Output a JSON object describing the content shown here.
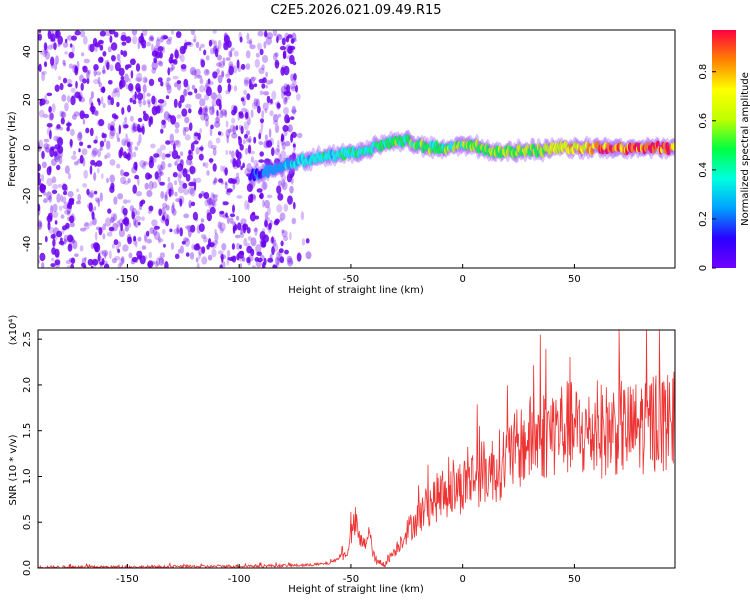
{
  "title": "C2E5.2026.021.09.49.R15",
  "colors": {
    "noise": "#6a00ee",
    "snr_line": "#ee3333",
    "colorbar_stops": [
      "#7000ff",
      "#2a00ff",
      "#00a0ff",
      "#00ffe0",
      "#00ff40",
      "#c0ff00",
      "#ffff00",
      "#ff8000",
      "#ff0040"
    ]
  },
  "chart_data": [
    {
      "type": "heatmap",
      "xlabel": "Height of straight line (km)",
      "ylabel": "Frequency (Hz)",
      "xlim": [
        -190,
        95
      ],
      "ylim": [
        -50,
        49
      ],
      "xticks": [
        -150,
        -100,
        -50,
        0,
        50
      ],
      "yticks": [
        -40,
        -20,
        0,
        20,
        40
      ],
      "colorbar": {
        "label": "Normalized spectral amplitude",
        "range": [
          0,
          0.97
        ],
        "ticks": [
          0.0,
          0.2,
          0.4,
          0.6,
          0.8
        ]
      },
      "noise_region_x": [
        -190,
        -75
      ],
      "signal_ridge": {
        "x": [
          -95,
          -85,
          -75,
          -65,
          -55,
          -45,
          -35,
          -25,
          -15,
          -5,
          5,
          15,
          25,
          35,
          45,
          55,
          65,
          75,
          85,
          95
        ],
        "freq": [
          -12,
          -9,
          -6,
          -4,
          -3,
          -2,
          2,
          3,
          0,
          0,
          1,
          -2,
          -1,
          -1,
          0,
          0,
          0,
          0,
          0,
          0
        ],
        "amplitude": [
          0.15,
          0.25,
          0.3,
          0.35,
          0.4,
          0.4,
          0.45,
          0.5,
          0.5,
          0.5,
          0.55,
          0.55,
          0.6,
          0.6,
          0.7,
          0.8,
          0.85,
          0.9,
          0.9,
          0.9
        ]
      }
    },
    {
      "type": "line",
      "xlabel": "Height of straight line (km)",
      "ylabel": "SNR (10 * v/v)",
      "y_multiplier": "(x10⁴)",
      "xlim": [
        -190,
        95
      ],
      "ylim": [
        0,
        2.6
      ],
      "xticks": [
        -150,
        -100,
        -50,
        0,
        50
      ],
      "yticks": [
        0.0,
        0.5,
        1.0,
        1.5,
        2.0,
        2.5
      ],
      "series": [
        {
          "x": [
            -190,
            -150,
            -100,
            -70,
            -60,
            -52,
            -50,
            -48,
            -46,
            -44,
            -42,
            -40,
            -38,
            -35,
            -30,
            -25,
            -20,
            -15,
            -10,
            -5,
            0,
            5,
            10,
            15,
            20,
            25,
            30,
            35,
            40,
            45,
            50,
            55,
            60,
            65,
            70,
            75,
            80,
            85,
            90,
            95
          ],
          "y": [
            0.01,
            0.01,
            0.02,
            0.03,
            0.05,
            0.15,
            0.35,
            0.5,
            0.3,
            0.25,
            0.4,
            0.15,
            0.05,
            0.05,
            0.2,
            0.4,
            0.55,
            0.7,
            0.8,
            0.85,
            0.9,
            1.0,
            1.05,
            1.1,
            1.2,
            1.3,
            1.4,
            1.45,
            1.5,
            1.55,
            1.5,
            1.45,
            1.5,
            1.5,
            1.55,
            1.5,
            1.55,
            1.6,
            1.6,
            1.6
          ]
        }
      ]
    }
  ]
}
